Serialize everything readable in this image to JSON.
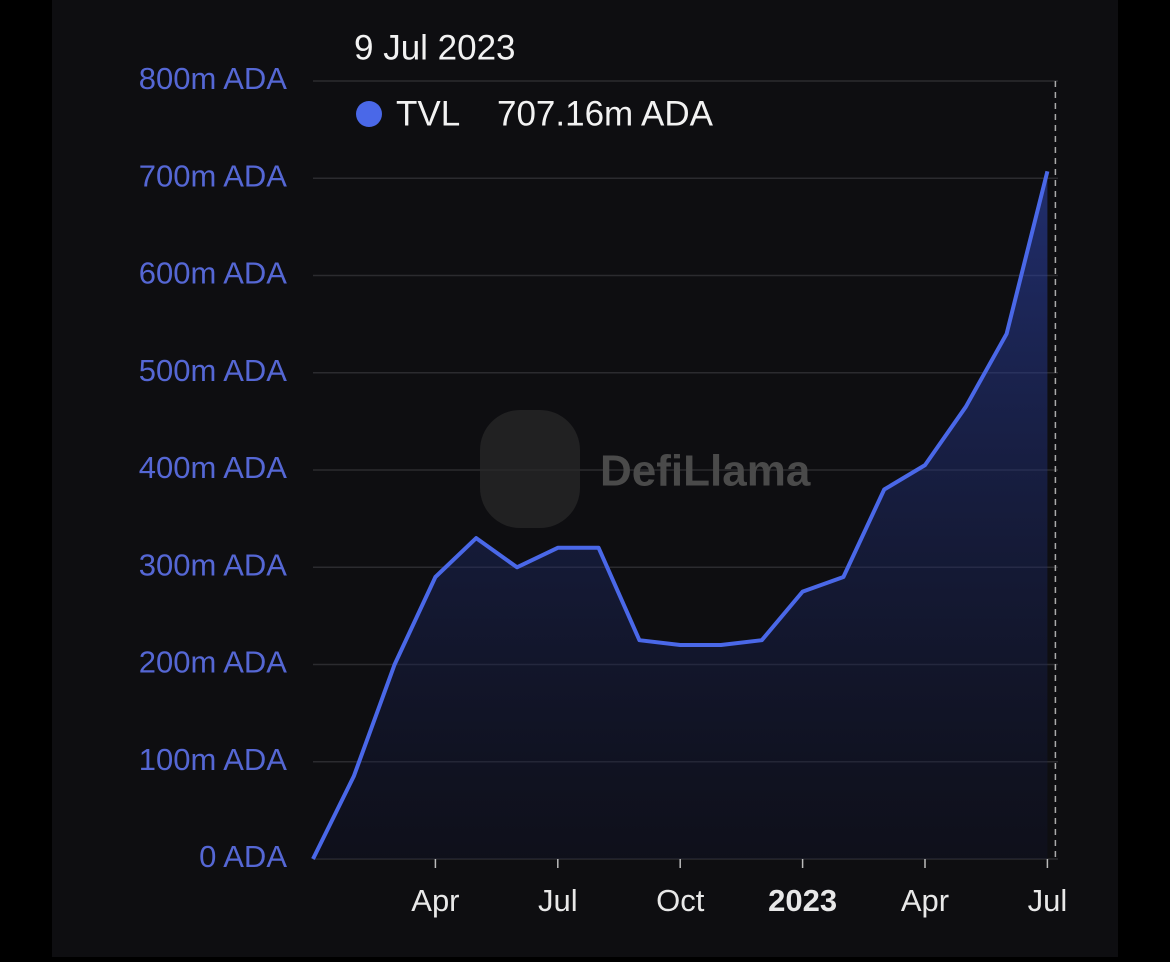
{
  "chart_data": {
    "type": "area",
    "tooltip": {
      "title": "9 Jul 2023",
      "value_label": "707.16m ADA"
    },
    "watermark": "DefiLlama",
    "x": [
      "2022-01",
      "2022-02",
      "2022-03",
      "2022-04",
      "2022-05",
      "2022-06",
      "2022-07",
      "2022-08",
      "2022-09",
      "2022-10",
      "2022-11",
      "2022-12",
      "2023-01",
      "2023-02",
      "2023-03",
      "2023-04",
      "2023-05",
      "2023-06",
      "2023-07"
    ],
    "series": [
      {
        "name": "TVL",
        "color": "#4a68e8",
        "values": [
          0,
          85,
          200,
          290,
          330,
          300,
          320,
          320,
          225,
          220,
          220,
          225,
          275,
          290,
          380,
          405,
          465,
          540,
          707.16
        ]
      }
    ],
    "xlim": [
      "2022-01",
      "2023-07"
    ],
    "xticks": [
      {
        "value": "2022-04",
        "label": "Apr"
      },
      {
        "value": "2022-07",
        "label": "Jul"
      },
      {
        "value": "2022-10",
        "label": "Oct"
      },
      {
        "value": "2023-01",
        "label": "2023"
      },
      {
        "value": "2023-04",
        "label": "Apr"
      },
      {
        "value": "2023-07",
        "label": "Jul"
      }
    ],
    "ylim": [
      0,
      800
    ],
    "yticks": [
      {
        "value": 0,
        "label": "0 ADA"
      },
      {
        "value": 100,
        "label": "100m ADA"
      },
      {
        "value": 200,
        "label": "200m ADA"
      },
      {
        "value": 300,
        "label": "300m ADA"
      },
      {
        "value": 400,
        "label": "400m ADA"
      },
      {
        "value": 500,
        "label": "500m ADA"
      },
      {
        "value": 600,
        "label": "600m ADA"
      },
      {
        "value": 700,
        "label": "700m ADA"
      },
      {
        "value": 800,
        "label": "800m ADA"
      }
    ],
    "grid": true
  }
}
